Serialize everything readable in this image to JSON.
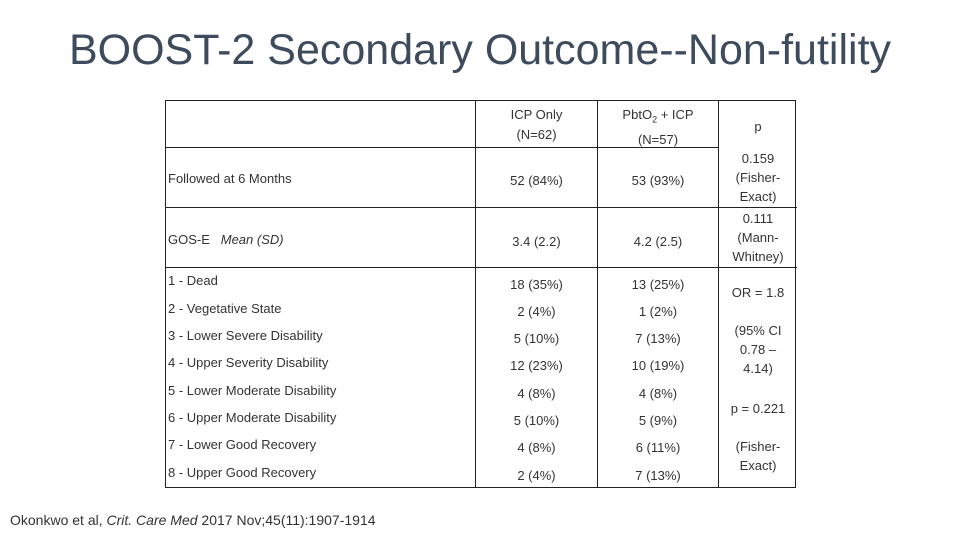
{
  "title": "BOOST-2 Secondary Outcome--Non-futility",
  "headers": {
    "col2_line1": "ICP Only",
    "col2_line2": "(N=62)",
    "col3_main": "Pbt",
    "col3_o": "O",
    "col3_sub": "2",
    "col3_rest": " + ICP",
    "col3_line2": "(N=57)",
    "col4": "p"
  },
  "rows": {
    "followed": {
      "label": "Followed at 6 Months",
      "icp": "52 (84%)",
      "pbt": "53 (93%)"
    },
    "gose": {
      "label": "GOS-E",
      "label_italic": "Mean (SD)",
      "icp": "3.4 (2.2)",
      "pbt": "4.2 (2.5)"
    },
    "items": [
      {
        "label": "1 - Dead",
        "icp": "18 (35%)",
        "pbt": "13 (25%)"
      },
      {
        "label": "2 - Vegetative State",
        "icp": "2 (4%)",
        "pbt": "1 (2%)"
      },
      {
        "label": "3 - Lower Severe Disability",
        "icp": "5 (10%)",
        "pbt": "7 (13%)"
      },
      {
        "label": "4 - Upper Severity Disability",
        "icp": "12 (23%)",
        "pbt": "10 (19%)"
      },
      {
        "label": "5 - Lower Moderate Disability",
        "icp": "4 (8%)",
        "pbt": "4 (8%)"
      },
      {
        "label": "6 - Upper Moderate Disability",
        "icp": "5 (10%)",
        "pbt": "5 (9%)"
      },
      {
        "label": "7 - Lower Good Recovery",
        "icp": "4 (8%)",
        "pbt": "6 (11%)"
      },
      {
        "label": "8 - Upper Good Recovery",
        "icp": "2 (4%)",
        "pbt": "7 (13%)"
      }
    ]
  },
  "pvalues": {
    "followed_1": "0.159",
    "followed_2": "(Fisher-",
    "followed_3": "Exact)",
    "gose_1": "0.111",
    "gose_2": "(Mann-",
    "gose_3": "Whitney)",
    "or": "OR = 1.8",
    "ci_1": "(95% CI",
    "ci_2": "0.78 –",
    "ci_3": "4.14)",
    "p": "p = 0.221",
    "fe_1": "(Fisher-",
    "fe_2": "Exact)"
  },
  "citation": {
    "authors": "Okonkwo et al, ",
    "journal": "Crit. Care Med",
    "rest": " 2017 Nov;45(11):1907-1914"
  }
}
